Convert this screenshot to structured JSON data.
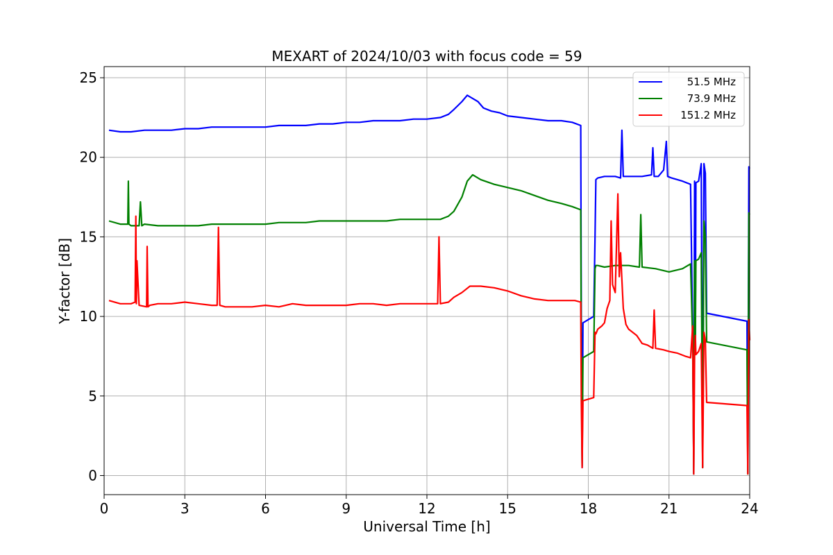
{
  "chart_data": {
    "type": "line",
    "title": "MEXART of 2024/10/03 with focus code = 59",
    "xlabel": "Universal Time [h]",
    "ylabel": "Y-factor [dB]",
    "xlim": [
      0,
      24
    ],
    "ylim": [
      -1.2,
      25.7
    ],
    "xticks": [
      0,
      3,
      6,
      9,
      12,
      15,
      18,
      21,
      24
    ],
    "yticks": [
      0,
      5,
      10,
      15,
      20,
      25
    ],
    "grid": true,
    "legend_position": "top-right",
    "series": [
      {
        "name": "51.5 MHz",
        "color": "#0000ff",
        "x": [
          0.18,
          0.6,
          1.0,
          1.5,
          2.0,
          2.5,
          3.0,
          3.5,
          4.0,
          4.5,
          5.0,
          5.5,
          6.0,
          6.5,
          7.0,
          7.5,
          8.0,
          8.5,
          9.0,
          9.5,
          10.0,
          10.5,
          11.0,
          11.5,
          12.0,
          12.5,
          12.8,
          13.0,
          13.3,
          13.5,
          13.7,
          13.9,
          14.1,
          14.4,
          14.7,
          15.0,
          15.5,
          16.0,
          16.5,
          17.0,
          17.4,
          17.72,
          17.74,
          17.77,
          17.8,
          18.2,
          18.25,
          18.28,
          18.35,
          18.6,
          19.0,
          19.2,
          19.25,
          19.3,
          19.5,
          20.0,
          20.35,
          20.4,
          20.45,
          20.6,
          20.8,
          20.9,
          20.95,
          21.1,
          21.5,
          21.8,
          21.88,
          21.92,
          21.95,
          21.98,
          22.0,
          22.1,
          22.2,
          22.25,
          22.3,
          22.35,
          22.4,
          23.9,
          23.93,
          23.97,
          24.0
        ],
        "y": [
          21.7,
          21.6,
          21.6,
          21.7,
          21.7,
          21.7,
          21.8,
          21.8,
          21.9,
          21.9,
          21.9,
          21.9,
          21.9,
          22.0,
          22.0,
          22.0,
          22.1,
          22.1,
          22.2,
          22.2,
          22.3,
          22.3,
          22.3,
          22.4,
          22.4,
          22.5,
          22.7,
          23.0,
          23.5,
          23.9,
          23.7,
          23.5,
          23.1,
          22.9,
          22.8,
          22.6,
          22.5,
          22.4,
          22.3,
          22.3,
          22.2,
          22.0,
          9.6,
          0.5,
          9.6,
          10.0,
          15.0,
          18.6,
          18.7,
          18.8,
          18.8,
          18.7,
          21.7,
          18.8,
          18.8,
          18.8,
          18.9,
          20.6,
          18.8,
          18.8,
          19.2,
          21.0,
          18.8,
          18.7,
          18.5,
          18.3,
          9.0,
          0.1,
          18.5,
          8.5,
          18.4,
          18.5,
          19.6,
          0.5,
          19.6,
          19.0,
          10.2,
          9.7,
          0.2,
          19.4,
          19.3
        ]
      },
      {
        "name": "73.9 MHz",
        "color": "#008000",
        "x": [
          0.18,
          0.6,
          0.88,
          0.9,
          0.92,
          1.0,
          1.3,
          1.35,
          1.4,
          1.5,
          2.0,
          2.5,
          3.0,
          3.5,
          4.0,
          4.5,
          5.0,
          5.5,
          6.0,
          6.5,
          7.0,
          7.5,
          8.0,
          8.5,
          9.0,
          9.5,
          10.0,
          10.5,
          11.0,
          11.5,
          12.0,
          12.5,
          12.8,
          13.0,
          13.3,
          13.5,
          13.7,
          14.0,
          14.5,
          15.0,
          15.5,
          16.0,
          16.5,
          17.0,
          17.4,
          17.72,
          17.74,
          17.77,
          17.8,
          18.2,
          18.25,
          18.28,
          18.35,
          18.6,
          19.0,
          19.5,
          19.9,
          19.95,
          20.0,
          20.5,
          21.0,
          21.5,
          21.8,
          21.88,
          21.92,
          21.95,
          21.98,
          22.0,
          22.1,
          22.2,
          22.25,
          22.3,
          22.35,
          22.4,
          23.9,
          23.93,
          23.97,
          24.0
        ],
        "y": [
          16.0,
          15.8,
          15.8,
          18.5,
          15.8,
          15.7,
          15.7,
          17.2,
          15.7,
          15.8,
          15.7,
          15.7,
          15.7,
          15.7,
          15.8,
          15.8,
          15.8,
          15.8,
          15.8,
          15.9,
          15.9,
          15.9,
          16.0,
          16.0,
          16.0,
          16.0,
          16.0,
          16.0,
          16.1,
          16.1,
          16.1,
          16.1,
          16.3,
          16.6,
          17.5,
          18.5,
          18.9,
          18.6,
          18.3,
          18.1,
          17.9,
          17.6,
          17.3,
          17.1,
          16.9,
          16.7,
          7.4,
          0.6,
          7.4,
          7.8,
          13.0,
          13.2,
          13.2,
          13.1,
          13.2,
          13.2,
          13.1,
          16.4,
          13.1,
          13.0,
          12.8,
          13.0,
          13.3,
          8.5,
          0.1,
          13.5,
          8.5,
          13.5,
          13.6,
          14.0,
          0.5,
          16.0,
          15.0,
          8.4,
          7.9,
          0.1,
          16.5,
          16.4
        ]
      },
      {
        "name": "151.2 MHz",
        "color": "#ff0000",
        "x": [
          0.18,
          0.6,
          1.0,
          1.15,
          1.18,
          1.2,
          1.22,
          1.3,
          1.58,
          1.6,
          1.63,
          1.7,
          2.0,
          2.5,
          3.0,
          3.5,
          4.0,
          4.2,
          4.25,
          4.3,
          4.5,
          5.0,
          5.5,
          6.0,
          6.5,
          7.0,
          7.5,
          8.0,
          8.5,
          9.0,
          9.5,
          10.0,
          10.5,
          11.0,
          11.5,
          12.0,
          12.4,
          12.45,
          12.5,
          12.8,
          13.0,
          13.3,
          13.6,
          14.0,
          14.5,
          15.0,
          15.5,
          16.0,
          16.5,
          17.0,
          17.5,
          17.72,
          17.74,
          17.77,
          17.8,
          18.2,
          18.25,
          18.28,
          18.35,
          18.5,
          18.6,
          18.7,
          18.8,
          18.85,
          18.9,
          19.0,
          19.1,
          19.15,
          19.2,
          19.3,
          19.4,
          19.5,
          19.8,
          20.0,
          20.2,
          20.4,
          20.45,
          20.5,
          20.8,
          21.0,
          21.3,
          21.6,
          21.8,
          21.88,
          21.92,
          21.95,
          21.98,
          22.0,
          22.1,
          22.2,
          22.25,
          22.3,
          22.35,
          22.4,
          23.9,
          23.93,
          23.97,
          24.0
        ],
        "y": [
          11.0,
          10.8,
          10.8,
          10.9,
          16.3,
          10.8,
          13.5,
          10.7,
          10.6,
          14.4,
          10.6,
          10.7,
          10.8,
          10.8,
          10.9,
          10.8,
          10.7,
          10.7,
          15.6,
          10.7,
          10.6,
          10.6,
          10.6,
          10.7,
          10.6,
          10.8,
          10.7,
          10.7,
          10.7,
          10.7,
          10.8,
          10.8,
          10.7,
          10.8,
          10.8,
          10.8,
          10.8,
          15.0,
          10.8,
          10.9,
          11.2,
          11.5,
          11.9,
          11.9,
          11.8,
          11.6,
          11.3,
          11.1,
          11.0,
          11.0,
          11.0,
          10.9,
          4.7,
          0.5,
          4.7,
          4.9,
          9.0,
          8.9,
          9.2,
          9.4,
          9.6,
          10.5,
          11.0,
          16.0,
          12.0,
          11.5,
          17.7,
          12.5,
          14.0,
          10.5,
          9.5,
          9.2,
          8.8,
          8.3,
          8.2,
          8.0,
          10.4,
          8.0,
          7.9,
          7.8,
          7.7,
          7.5,
          7.4,
          9.4,
          0.1,
          7.5,
          8.8,
          7.6,
          7.8,
          8.3,
          0.5,
          9.0,
          8.5,
          4.6,
          4.4,
          0.1,
          9.8,
          8.5
        ]
      }
    ]
  }
}
